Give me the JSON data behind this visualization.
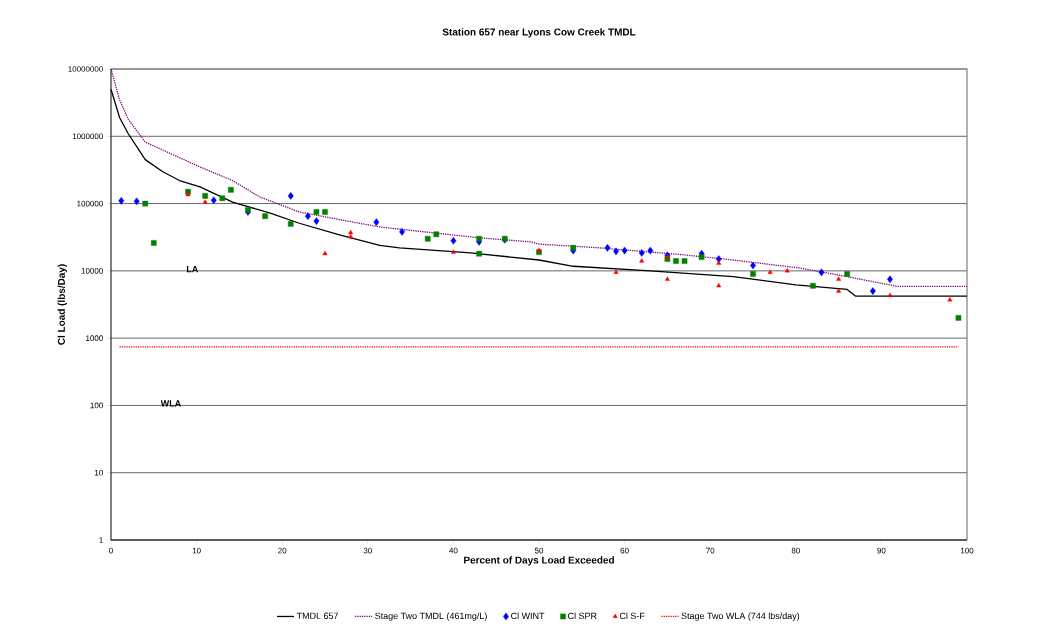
{
  "chart_data": {
    "type": "line",
    "title": "Station 657 near Lyons Cow Creek TMDL",
    "xlabel": "Percent of Days Load Exceeded",
    "ylabel": "Cl Load (lbs/Day)",
    "log": "y",
    "grid": "y",
    "legend": "bottom",
    "xlim": [
      0,
      100
    ],
    "xticks": [
      0,
      10,
      20,
      30,
      40,
      50,
      60,
      70,
      80,
      90,
      100
    ],
    "ylim": [
      1,
      10000000
    ],
    "yticks": [
      1,
      10,
      100,
      1000,
      10000,
      100000,
      1000000,
      10000000
    ],
    "annotations": [
      "LA",
      "WLA"
    ],
    "series": [
      {
        "name": "TMDL 657",
        "color": "#000000",
        "line_style": "solid",
        "marker": "none",
        "x": [
          0,
          1,
          2,
          4,
          6,
          8,
          10.4,
          14.2,
          18.6,
          22,
          26.8,
          31.4,
          33.7,
          42,
          50,
          54,
          63,
          72.7,
          80,
          86,
          87,
          100
        ],
        "values": [
          5000000,
          1900000,
          1100000,
          450000,
          300000,
          220000,
          177000,
          105000,
          72000,
          51000,
          34000,
          24000,
          22000,
          18500,
          14500,
          11700,
          10000,
          8200,
          6200,
          5300,
          4200,
          4200
        ]
      },
      {
        "name": "Stage Two TMDL (461mg/L)",
        "color": "#800080",
        "line_style": "dotted",
        "marker": "none",
        "x": [
          0,
          1,
          2,
          4,
          10.4,
          14.2,
          17.4,
          22,
          29,
          31.4,
          35,
          43,
          49,
          50,
          57,
          66.5,
          72.7,
          80.5,
          86,
          91.8,
          100
        ],
        "values": [
          10000000,
          3500000,
          1800000,
          820000,
          350000,
          220000,
          125000,
          75000,
          51000,
          45000,
          40000,
          31000,
          27000,
          25000,
          22000,
          17500,
          14500,
          11000,
          8200,
          5900,
          5900
        ]
      },
      {
        "name": "Cl WINT",
        "type": "scatter",
        "color": "#0000ff",
        "marker": "diamond",
        "x": [
          1.2,
          3,
          12,
          16,
          21,
          23,
          24,
          31,
          34,
          40,
          43,
          46,
          54,
          58,
          59,
          60,
          62,
          63,
          65,
          69,
          71,
          75,
          83,
          89,
          91
        ],
        "values": [
          110000,
          108000,
          112000,
          75000,
          130000,
          65000,
          55000,
          53000,
          38000,
          28000,
          27000,
          29000,
          20000,
          22000,
          19500,
          20000,
          18500,
          20000,
          17000,
          18000,
          15000,
          12000,
          9500,
          5000,
          7500
        ]
      },
      {
        "name": "Cl SPR",
        "type": "scatter",
        "color": "#008000",
        "marker": "square",
        "x": [
          4,
          5,
          9,
          11,
          13,
          14,
          16,
          18,
          21,
          24,
          25,
          37,
          38,
          43,
          43,
          46,
          50,
          54,
          65,
          66,
          67,
          69,
          75,
          82,
          86,
          99
        ],
        "values": [
          100000,
          26000,
          150000,
          130000,
          120000,
          160000,
          80000,
          65000,
          50000,
          75000,
          75000,
          30000,
          35000,
          30000,
          18000,
          30000,
          19000,
          22000,
          15000,
          14000,
          14000,
          16000,
          9000,
          6000,
          9000,
          2000
        ]
      },
      {
        "name": "Cl S-F",
        "type": "scatter",
        "color": "#ff0000",
        "marker": "triangle",
        "x": [
          9,
          11,
          25,
          28,
          28,
          40,
          50,
          59,
          62,
          65,
          65,
          71,
          71,
          77,
          79,
          85,
          85,
          91,
          98
        ],
        "values": [
          135000,
          105000,
          18000,
          37000,
          32000,
          19000,
          20000,
          9500,
          14000,
          16000,
          7500,
          13000,
          6000,
          9500,
          10000,
          7500,
          5000,
          4300,
          3700
        ]
      },
      {
        "name": "Stage Two WLA (744 lbs/day)",
        "color": "#ff0000",
        "line_style": "dotted",
        "marker": "none",
        "x": [
          1,
          99
        ],
        "values": [
          744,
          744
        ]
      }
    ]
  }
}
